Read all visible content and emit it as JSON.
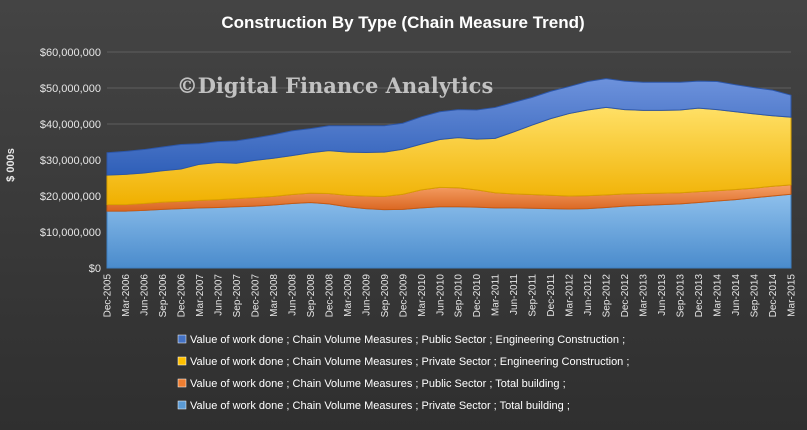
{
  "chart_data": {
    "type": "area",
    "stacked": true,
    "title": "Construction  By Type  (Chain Measure Trend)",
    "watermark": "©Digital Finance Analytics",
    "ylabel": "$ 000s",
    "ylim": [
      0,
      60000000
    ],
    "y_ticks": [
      "$0",
      "$10,000,000",
      "$20,000,000",
      "$30,000,000",
      "$40,000,000",
      "$50,000,000",
      "$60,000,000"
    ],
    "grid": true,
    "legend_position": "bottom",
    "categories": [
      "Dec-2005",
      "Mar-2006",
      "Jun-2006",
      "Sep-2006",
      "Dec-2006",
      "Mar-2007",
      "Jun-2007",
      "Sep-2007",
      "Dec-2007",
      "Mar-2008",
      "Jun-2008",
      "Sep-2008",
      "Dec-2008",
      "Mar-2009",
      "Jun-2009",
      "Sep-2009",
      "Dec-2009",
      "Mar-2010",
      "Jun-2010",
      "Sep-2010",
      "Dec-2010",
      "Mar-2011",
      "Jun-2011",
      "Sep-2011",
      "Dec-2011",
      "Mar-2012",
      "Jun-2012",
      "Sep-2012",
      "Dec-2012",
      "Mar-2013",
      "Jun-2013",
      "Sep-2013",
      "Dec-2013",
      "Mar-2014",
      "Jun-2014",
      "Sep-2014",
      "Dec-2014",
      "Mar-2015"
    ],
    "series": [
      {
        "name": "Value of work done ;  Chain Volume Measures ;  Private Sector ;  Total building ;",
        "color": "#5b9bd5",
        "values": [
          15800000,
          15800000,
          16000000,
          16300000,
          16500000,
          16700000,
          16800000,
          17000000,
          17200000,
          17500000,
          17900000,
          18200000,
          17800000,
          17000000,
          16500000,
          16200000,
          16300000,
          16700000,
          17000000,
          17000000,
          16900000,
          16700000,
          16700000,
          16600000,
          16500000,
          16400000,
          16500000,
          16800000,
          17200000,
          17400000,
          17600000,
          17800000,
          18200000,
          18600000,
          19000000,
          19500000,
          20000000,
          20500000
        ]
      },
      {
        "name": "Value of work done ;  Chain Volume Measures ;  Public Sector ;  Total building ;",
        "color": "#ed7d31",
        "values": [
          1800000,
          1800000,
          1900000,
          2000000,
          2000000,
          2100000,
          2200000,
          2300000,
          2400000,
          2400000,
          2500000,
          2600000,
          2900000,
          3200000,
          3500000,
          3700000,
          4200000,
          5000000,
          5400000,
          5300000,
          4800000,
          4200000,
          3900000,
          3800000,
          3700000,
          3600000,
          3600000,
          3500000,
          3400000,
          3300000,
          3200000,
          3100000,
          3000000,
          2900000,
          2800000,
          2700000,
          2700000,
          2600000
        ]
      },
      {
        "name": "Value of work done ;  Chain Volume Measures ;  Private Sector ;  Engineering Construction ;",
        "color": "#ffc000",
        "values": [
          8200000,
          8400000,
          8500000,
          8700000,
          9000000,
          10000000,
          10300000,
          9800000,
          10300000,
          10600000,
          10800000,
          11200000,
          11900000,
          12000000,
          12100000,
          12300000,
          12500000,
          12700000,
          13300000,
          13900000,
          14100000,
          15100000,
          17200000,
          19300000,
          21300000,
          22900000,
          23800000,
          24300000,
          23400000,
          23100000,
          23000000,
          23000000,
          23200000,
          22500000,
          21600000,
          20600000,
          19600000,
          18800000
        ]
      },
      {
        "name": "Value of work done ;  Chain Volume Measures ;  Public Sector ;  Engineering Construction ;",
        "color": "#4472c4",
        "values": [
          6200000,
          6400000,
          6500000,
          6600000,
          6800000,
          5700000,
          5800000,
          6200000,
          6200000,
          6500000,
          6900000,
          6700000,
          6900000,
          7300000,
          7400000,
          7300000,
          7200000,
          7600000,
          7700000,
          7800000,
          8100000,
          8600000,
          8200000,
          7700000,
          7600000,
          7500000,
          7900000,
          8000000,
          7900000,
          7800000,
          7800000,
          7700000,
          7500000,
          7800000,
          7500000,
          7300000,
          7100000,
          6100000
        ]
      }
    ]
  }
}
